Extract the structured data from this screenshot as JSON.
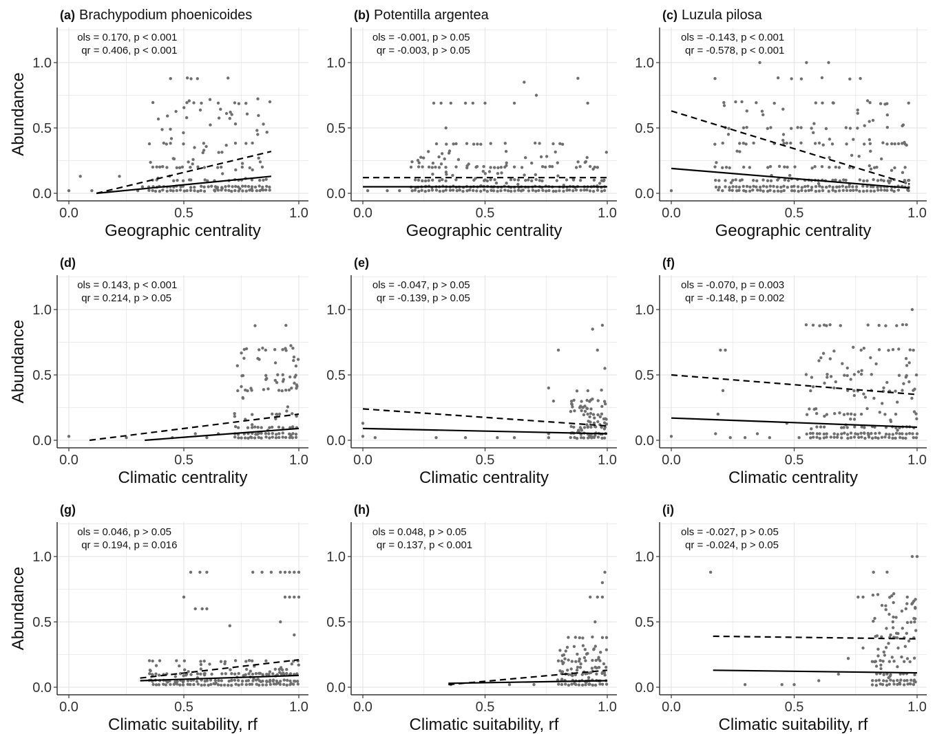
{
  "chart_data": [
    {
      "id": "(a)",
      "species": "Brachypodium phoenicoides",
      "type": "scatter",
      "xlabel": "Geographic centrality",
      "ylabel": "Abundance",
      "xlim": [
        0,
        1
      ],
      "ylim": [
        0,
        1.25
      ],
      "xticks": [
        "0.0",
        "0.5",
        "1.0"
      ],
      "yticks": [
        "0.0",
        "0.5",
        "1.0"
      ],
      "stats": [
        "ols = 0.170, p < 0.001",
        "qr = 0.406, p < 0.001"
      ],
      "ols_line": [
        [
          0.12,
          0.0
        ],
        [
          0.88,
          0.13
        ]
      ],
      "qr_line": [
        [
          0.12,
          0.0
        ],
        [
          0.88,
          0.32
        ]
      ],
      "point_cloud": {
        "x_min": 0.35,
        "x_max": 0.88,
        "levels": [
          0.88,
          0.69,
          0.38,
          0.2,
          0.1,
          0.05,
          0.02
        ]
      },
      "points": [
        [
          0.0,
          0.02
        ],
        [
          0.05,
          0.13
        ],
        [
          0.1,
          0.02
        ],
        [
          0.22,
          0.13
        ],
        [
          0.3,
          0.02
        ],
        [
          0.32,
          0.05
        ]
      ]
    },
    {
      "id": "(b)",
      "species": "Potentilla argentea",
      "type": "scatter",
      "xlabel": "Geographic centrality",
      "ylabel": "",
      "xlim": [
        0,
        1
      ],
      "ylim": [
        0,
        1.25
      ],
      "xticks": [
        "0.0",
        "0.5",
        "1.0"
      ],
      "yticks": [
        "0.0",
        "0.5",
        "1.0"
      ],
      "stats": [
        "ols = -0.001, p > 0.05",
        "qr = -0.003, p > 0.05"
      ],
      "ols_line": [
        [
          0.0,
          0.05
        ],
        [
          1.0,
          0.05
        ]
      ],
      "qr_line": [
        [
          0.0,
          0.12
        ],
        [
          1.0,
          0.12
        ]
      ],
      "point_cloud": {
        "x_min": 0.2,
        "x_max": 1.0,
        "levels": [
          0.38,
          0.2,
          0.1,
          0.05,
          0.02
        ]
      },
      "points": [
        [
          0.29,
          0.69
        ],
        [
          0.32,
          0.69
        ],
        [
          0.36,
          0.69
        ],
        [
          0.42,
          0.69
        ],
        [
          0.45,
          0.69
        ],
        [
          0.5,
          0.69
        ],
        [
          0.34,
          0.5
        ],
        [
          0.62,
          0.69
        ],
        [
          0.66,
          0.85
        ],
        [
          0.71,
          0.75
        ],
        [
          0.88,
          0.88
        ],
        [
          0.92,
          0.69
        ],
        [
          0.02,
          0.02
        ],
        [
          0.1,
          0.02
        ],
        [
          0.15,
          0.02
        ]
      ]
    },
    {
      "id": "(c)",
      "species": "Luzula pilosa",
      "type": "scatter",
      "xlabel": "Geographic centrality",
      "ylabel": "",
      "xlim": [
        0,
        1
      ],
      "ylim": [
        0,
        1.25
      ],
      "xticks": [
        "0.0",
        "0.5",
        "1.0"
      ],
      "yticks": [
        "0.0",
        "0.5",
        "1.0"
      ],
      "stats": [
        "ols = -0.143, p < 0.001",
        "qr = -0.578, p < 0.001"
      ],
      "ols_line": [
        [
          0.0,
          0.19
        ],
        [
          0.97,
          0.04
        ]
      ],
      "qr_line": [
        [
          0.0,
          0.63
        ],
        [
          0.97,
          0.07
        ]
      ],
      "point_cloud": {
        "x_min": 0.18,
        "x_max": 0.97,
        "levels": [
          0.88,
          0.69,
          0.5,
          0.38,
          0.2,
          0.1,
          0.05,
          0.02
        ]
      },
      "points": [
        [
          0.0,
          0.02
        ],
        [
          0.36,
          1.0
        ],
        [
          0.55,
          1.0
        ],
        [
          0.64,
          1.0
        ]
      ]
    },
    {
      "id": "(d)",
      "species": "",
      "type": "scatter",
      "xlabel": "Climatic centrality",
      "ylabel": "Abundance",
      "xlim": [
        0,
        1
      ],
      "ylim": [
        0,
        1.25
      ],
      "xticks": [
        "0.0",
        "0.5",
        "1.0"
      ],
      "yticks": [
        "0.0",
        "0.5",
        "1.0"
      ],
      "stats": [
        "ols = 0.143, p < 0.001",
        "qr = 0.214, p > 0.05"
      ],
      "ols_line": [
        [
          0.33,
          0.0
        ],
        [
          1.0,
          0.09
        ]
      ],
      "qr_line": [
        [
          0.09,
          0.0
        ],
        [
          1.0,
          0.2
        ]
      ],
      "point_cloud": {
        "x_min": 0.72,
        "x_max": 1.0,
        "levels": [
          0.88,
          0.69,
          0.5,
          0.38,
          0.2,
          0.1,
          0.05,
          0.02
        ]
      },
      "points": [
        [
          0.0,
          0.03
        ],
        [
          0.25,
          0.02
        ],
        [
          0.45,
          0.02
        ],
        [
          0.55,
          0.05
        ],
        [
          0.6,
          0.02
        ],
        [
          0.65,
          0.05
        ]
      ]
    },
    {
      "id": "(e)",
      "species": "",
      "type": "scatter",
      "xlabel": "Climatic centrality",
      "ylabel": "",
      "xlim": [
        0,
        1
      ],
      "ylim": [
        0,
        1.25
      ],
      "xticks": [
        "0.0",
        "0.5",
        "1.0"
      ],
      "yticks": [
        "0.0",
        "0.5",
        "1.0"
      ],
      "stats": [
        "ols = -0.047, p > 0.05",
        "qr = -0.139, p > 0.05"
      ],
      "ols_line": [
        [
          0.0,
          0.09
        ],
        [
          1.0,
          0.05
        ]
      ],
      "qr_line": [
        [
          0.0,
          0.24
        ],
        [
          1.0,
          0.11
        ]
      ],
      "point_cloud": {
        "x_min": 0.85,
        "x_max": 1.0,
        "levels": [
          0.38,
          0.2,
          0.1,
          0.05,
          0.02
        ]
      },
      "points": [
        [
          0.0,
          0.13
        ],
        [
          0.0,
          0.03
        ],
        [
          0.05,
          0.02
        ],
        [
          0.3,
          0.02
        ],
        [
          0.42,
          0.02
        ],
        [
          0.55,
          0.02
        ],
        [
          0.62,
          0.02
        ],
        [
          0.76,
          0.4
        ],
        [
          0.76,
          0.05
        ],
        [
          0.76,
          0.02
        ],
        [
          0.78,
          0.3
        ],
        [
          0.8,
          0.69
        ],
        [
          0.94,
          0.85
        ],
        [
          0.96,
          0.69
        ],
        [
          0.98,
          0.88
        ],
        [
          0.99,
          0.55
        ]
      ]
    },
    {
      "id": "(f)",
      "species": "",
      "type": "scatter",
      "xlabel": "Climatic centrality",
      "ylabel": "",
      "xlim": [
        0,
        1
      ],
      "ylim": [
        0,
        1.25
      ],
      "xticks": [
        "0.0",
        "0.5",
        "1.0"
      ],
      "yticks": [
        "0.0",
        "0.5",
        "1.0"
      ],
      "stats": [
        "ols = -0.070, p = 0.003",
        "qr = -0.148, p = 0.002"
      ],
      "ols_line": [
        [
          0.0,
          0.17
        ],
        [
          1.0,
          0.1
        ]
      ],
      "qr_line": [
        [
          0.0,
          0.5
        ],
        [
          1.0,
          0.35
        ]
      ],
      "point_cloud": {
        "x_min": 0.55,
        "x_max": 1.0,
        "levels": [
          0.88,
          0.69,
          0.5,
          0.38,
          0.2,
          0.1,
          0.05,
          0.02
        ]
      },
      "points": [
        [
          0.0,
          0.03
        ],
        [
          0.18,
          0.05
        ],
        [
          0.2,
          0.69
        ],
        [
          0.22,
          0.69
        ],
        [
          0.21,
          0.38
        ],
        [
          0.19,
          0.2
        ],
        [
          0.24,
          0.02
        ],
        [
          0.3,
          0.02
        ],
        [
          0.35,
          0.05
        ],
        [
          0.4,
          0.02
        ],
        [
          0.47,
          0.13
        ],
        [
          0.52,
          0.02
        ],
        [
          0.98,
          1.0
        ]
      ]
    },
    {
      "id": "(g)",
      "species": "",
      "type": "scatter",
      "xlabel": "Climatic suitability, rf",
      "ylabel": "Abundance",
      "xlim": [
        0,
        1
      ],
      "ylim": [
        0,
        1.25
      ],
      "xticks": [
        "0.0",
        "0.5",
        "1.0"
      ],
      "yticks": [
        "0.0",
        "0.5",
        "1.0"
      ],
      "stats": [
        "ols = 0.046, p > 0.05",
        "qr = 0.194, p = 0.016"
      ],
      "ols_line": [
        [
          0.31,
          0.05
        ],
        [
          1.0,
          0.09
        ]
      ],
      "qr_line": [
        [
          0.31,
          0.07
        ],
        [
          1.0,
          0.21
        ]
      ],
      "point_cloud": {
        "x_min": 0.35,
        "x_max": 1.0,
        "levels": [
          0.2,
          0.1,
          0.05,
          0.02
        ]
      },
      "points": [
        [
          0.5,
          0.69
        ],
        [
          0.53,
          0.88
        ],
        [
          0.57,
          0.88
        ],
        [
          0.6,
          0.88
        ],
        [
          0.55,
          0.6
        ],
        [
          0.58,
          0.6
        ],
        [
          0.6,
          0.6
        ],
        [
          0.8,
          0.88
        ],
        [
          0.84,
          0.88
        ],
        [
          0.88,
          0.88
        ],
        [
          0.92,
          0.88
        ],
        [
          0.94,
          0.88
        ],
        [
          0.96,
          0.88
        ],
        [
          0.98,
          0.88
        ],
        [
          1.0,
          0.88
        ],
        [
          0.94,
          0.69
        ],
        [
          0.96,
          0.69
        ],
        [
          0.98,
          0.69
        ],
        [
          1.0,
          0.69
        ],
        [
          0.92,
          0.5
        ],
        [
          0.98,
          0.4
        ],
        [
          0.7,
          0.47
        ]
      ]
    },
    {
      "id": "(h)",
      "species": "",
      "type": "scatter",
      "xlabel": "Climatic suitability, rf",
      "ylabel": "",
      "xlim": [
        0,
        1
      ],
      "ylim": [
        0,
        1.25
      ],
      "xticks": [
        "0.0",
        "0.5",
        "1.0"
      ],
      "yticks": [
        "0.0",
        "0.5",
        "1.0"
      ],
      "stats": [
        "ols = 0.048, p > 0.05",
        "qr = 0.137, p < 0.001"
      ],
      "ols_line": [
        [
          0.35,
          0.03
        ],
        [
          1.0,
          0.05
        ]
      ],
      "qr_line": [
        [
          0.35,
          0.02
        ],
        [
          1.0,
          0.13
        ]
      ],
      "point_cloud": {
        "x_min": 0.8,
        "x_max": 1.0,
        "levels": [
          0.38,
          0.2,
          0.1,
          0.05,
          0.02
        ]
      },
      "points": [
        [
          0.36,
          0.02
        ],
        [
          0.6,
          0.02
        ],
        [
          0.7,
          0.02
        ],
        [
          0.93,
          0.69
        ],
        [
          0.96,
          0.69
        ],
        [
          0.98,
          0.69
        ],
        [
          0.99,
          0.88
        ],
        [
          0.98,
          0.8
        ],
        [
          0.95,
          0.5
        ]
      ]
    },
    {
      "id": "(i)",
      "species": "",
      "type": "scatter",
      "xlabel": "Climatic suitability, rf",
      "ylabel": "",
      "xlim": [
        0,
        1
      ],
      "ylim": [
        0,
        1.25
      ],
      "xticks": [
        "0.0",
        "0.5",
        "1.0"
      ],
      "yticks": [
        "0.0",
        "0.5",
        "1.0"
      ],
      "stats": [
        "ols = -0.027, p > 0.05",
        "qr = -0.024, p > 0.05"
      ],
      "ols_line": [
        [
          0.17,
          0.13
        ],
        [
          1.0,
          0.11
        ]
      ],
      "qr_line": [
        [
          0.17,
          0.39
        ],
        [
          1.0,
          0.37
        ]
      ],
      "point_cloud": {
        "x_min": 0.82,
        "x_max": 1.0,
        "levels": [
          0.88,
          0.69,
          0.5,
          0.38,
          0.2,
          0.1,
          0.05,
          0.02
        ]
      },
      "points": [
        [
          0.16,
          0.88
        ],
        [
          0.3,
          0.02
        ],
        [
          0.45,
          0.02
        ],
        [
          0.5,
          0.02
        ],
        [
          0.6,
          0.05
        ],
        [
          0.68,
          0.1
        ],
        [
          0.72,
          0.22
        ],
        [
          0.76,
          0.69
        ],
        [
          0.78,
          0.69
        ],
        [
          0.78,
          0.3
        ],
        [
          0.98,
          1.0
        ],
        [
          1.0,
          1.0
        ]
      ]
    }
  ],
  "style": {
    "point_color": "#6f6f6f",
    "line_color": "#000000",
    "grid_color": "#e6e6e6"
  }
}
